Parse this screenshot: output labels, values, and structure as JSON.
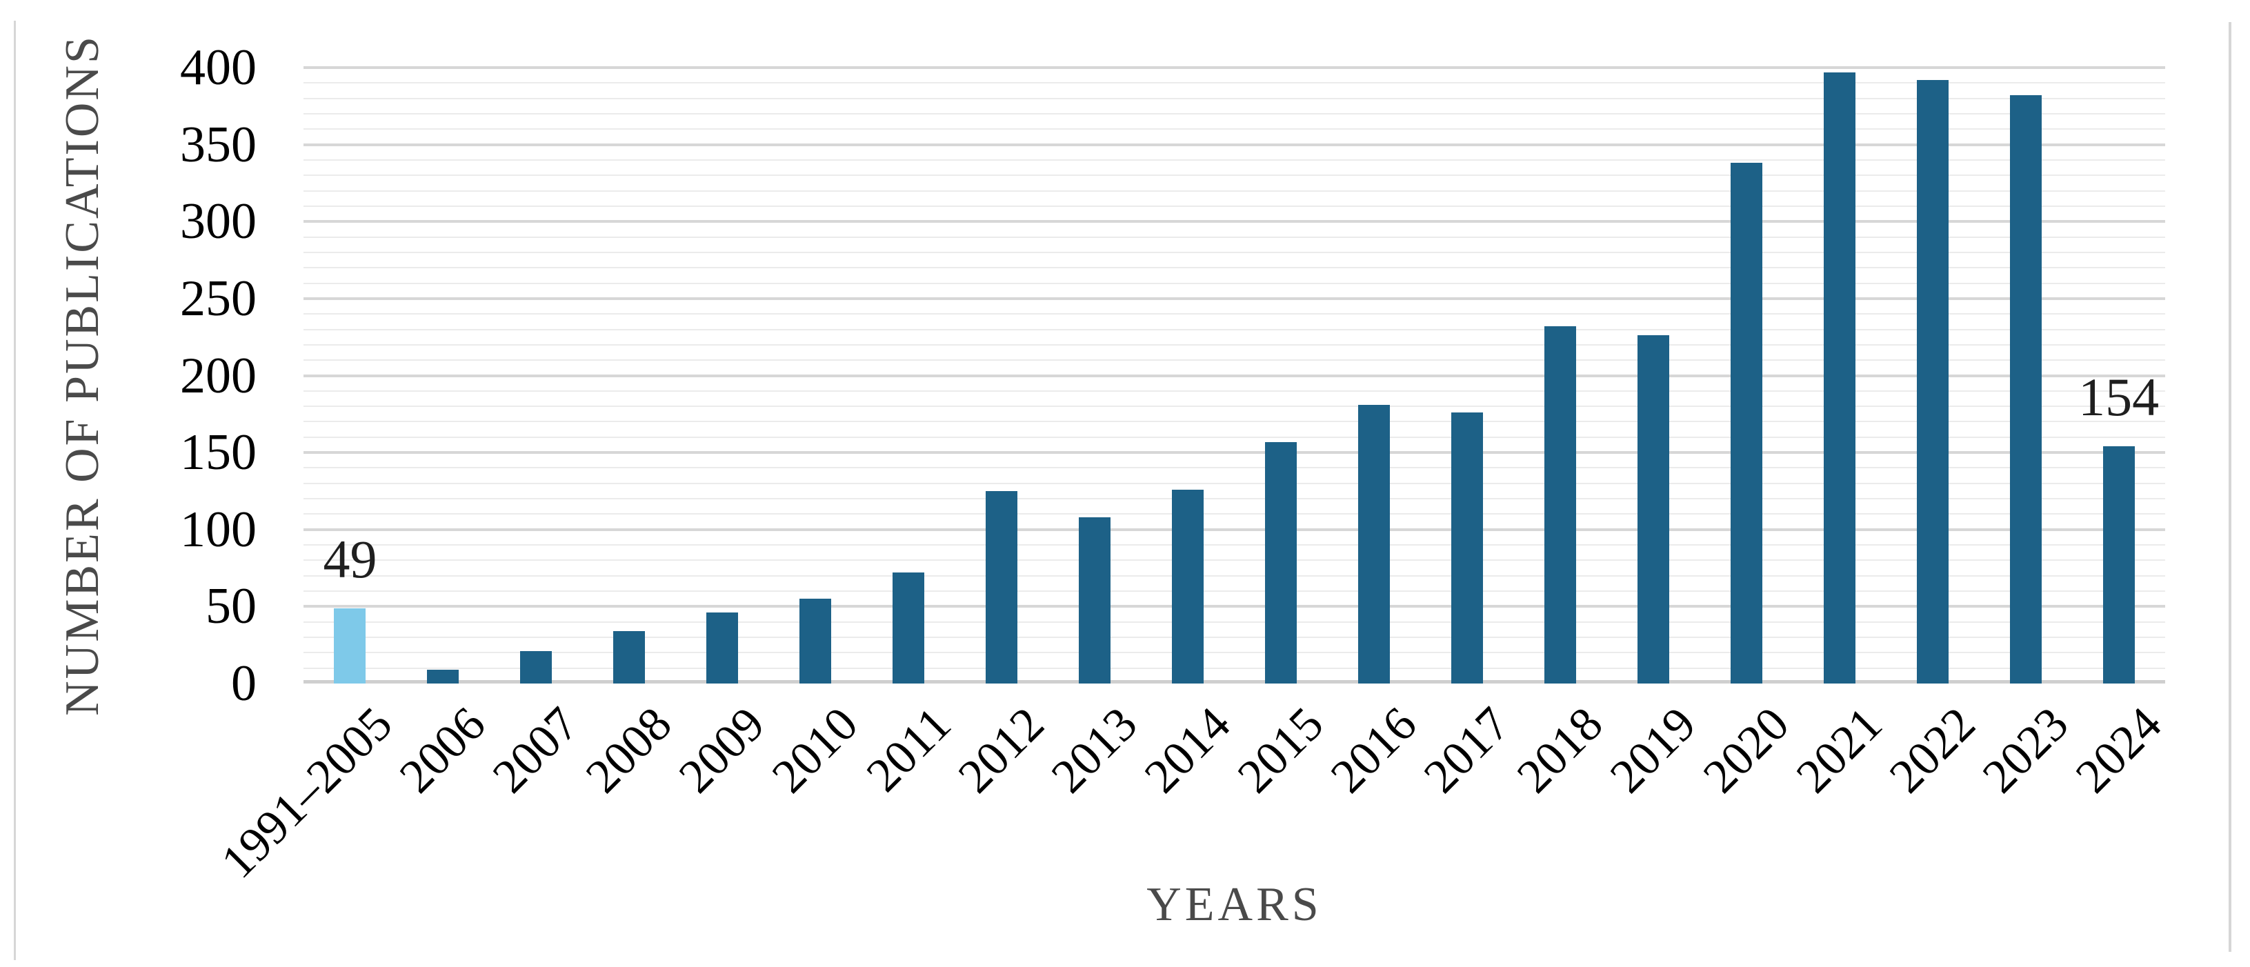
{
  "page": {
    "background": "#ffffff",
    "border_color": "#d6d6d6"
  },
  "chart_data": {
    "type": "bar",
    "title": "",
    "xlabel": "YEARS",
    "ylabel": "NUMBER OF PUBLICATIONS",
    "categories": [
      "1991–2005",
      "2006",
      "2007",
      "2008",
      "2009",
      "2010",
      "2011",
      "2012",
      "2013",
      "2014",
      "2015",
      "2016",
      "2017",
      "2018",
      "2019",
      "2020",
      "2021",
      "2022",
      "2023",
      "2024"
    ],
    "values": [
      49,
      9,
      21,
      34,
      46,
      55,
      72,
      125,
      108,
      126,
      157,
      181,
      176,
      232,
      226,
      338,
      397,
      392,
      382,
      154
    ],
    "ylim": [
      0,
      400
    ],
    "yticks": [
      0,
      50,
      100,
      150,
      200,
      250,
      300,
      350,
      400
    ],
    "major_grid_step": 50,
    "minor_grid_step": 10,
    "grid": "horizontal",
    "legend_position": "none",
    "bar_color": "#1d6187",
    "highlight_bar_color": "#7ec9e9",
    "highlight_index": 0,
    "data_labels": [
      {
        "index": 0,
        "text": "49"
      },
      {
        "index": 19,
        "text": "154"
      }
    ],
    "colors": {
      "grid_major": "#d7d7d7",
      "grid_minor": "#ebebeb",
      "baseline": "#cfcfcf",
      "tick_text": "#3d3d3d",
      "axis_title_text": "#4a4a4a",
      "data_label_text": "#1f1f1f"
    }
  }
}
